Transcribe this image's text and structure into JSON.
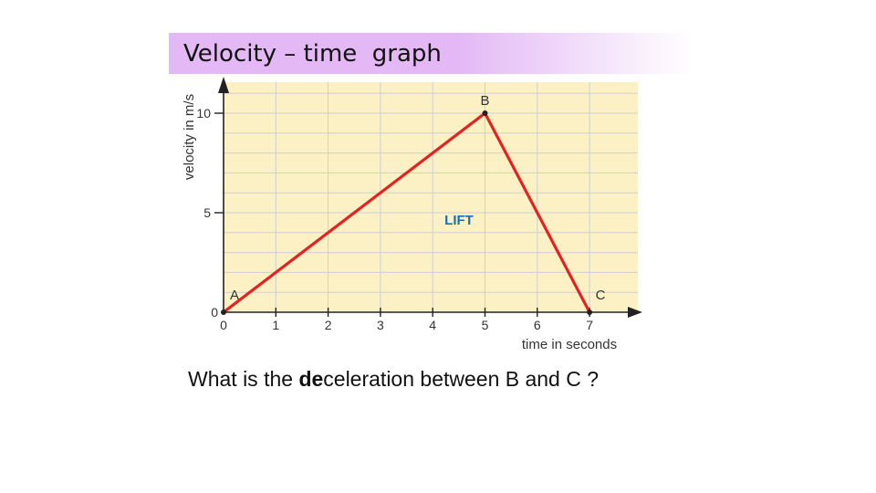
{
  "slide": {
    "title": "Velocity – time  graph",
    "question": {
      "prefix": "What is the ",
      "emphasis": "de",
      "suffix": "celeration between B and C ?"
    }
  },
  "colors": {
    "title_bar": "#e3b8f5",
    "plot_background": "#fbf1c4",
    "grid": "#cfcfcf",
    "line": "#e32222",
    "annotation": "#1c6fb0"
  },
  "chart_data": {
    "type": "line",
    "title": "",
    "xlabel": "time in seconds",
    "ylabel": "velocity in m/s",
    "xlim": [
      0,
      8
    ],
    "ylim": [
      0,
      10
    ],
    "x_ticks": [
      0,
      1,
      2,
      3,
      4,
      5,
      6,
      7
    ],
    "y_ticks": [
      0,
      5,
      10
    ],
    "grid": true,
    "series": [
      {
        "x": [
          0,
          5,
          7
        ],
        "y": [
          0,
          10,
          0
        ]
      }
    ],
    "point_labels": [
      "A",
      "B",
      "C"
    ],
    "annotation": "LIFT"
  }
}
